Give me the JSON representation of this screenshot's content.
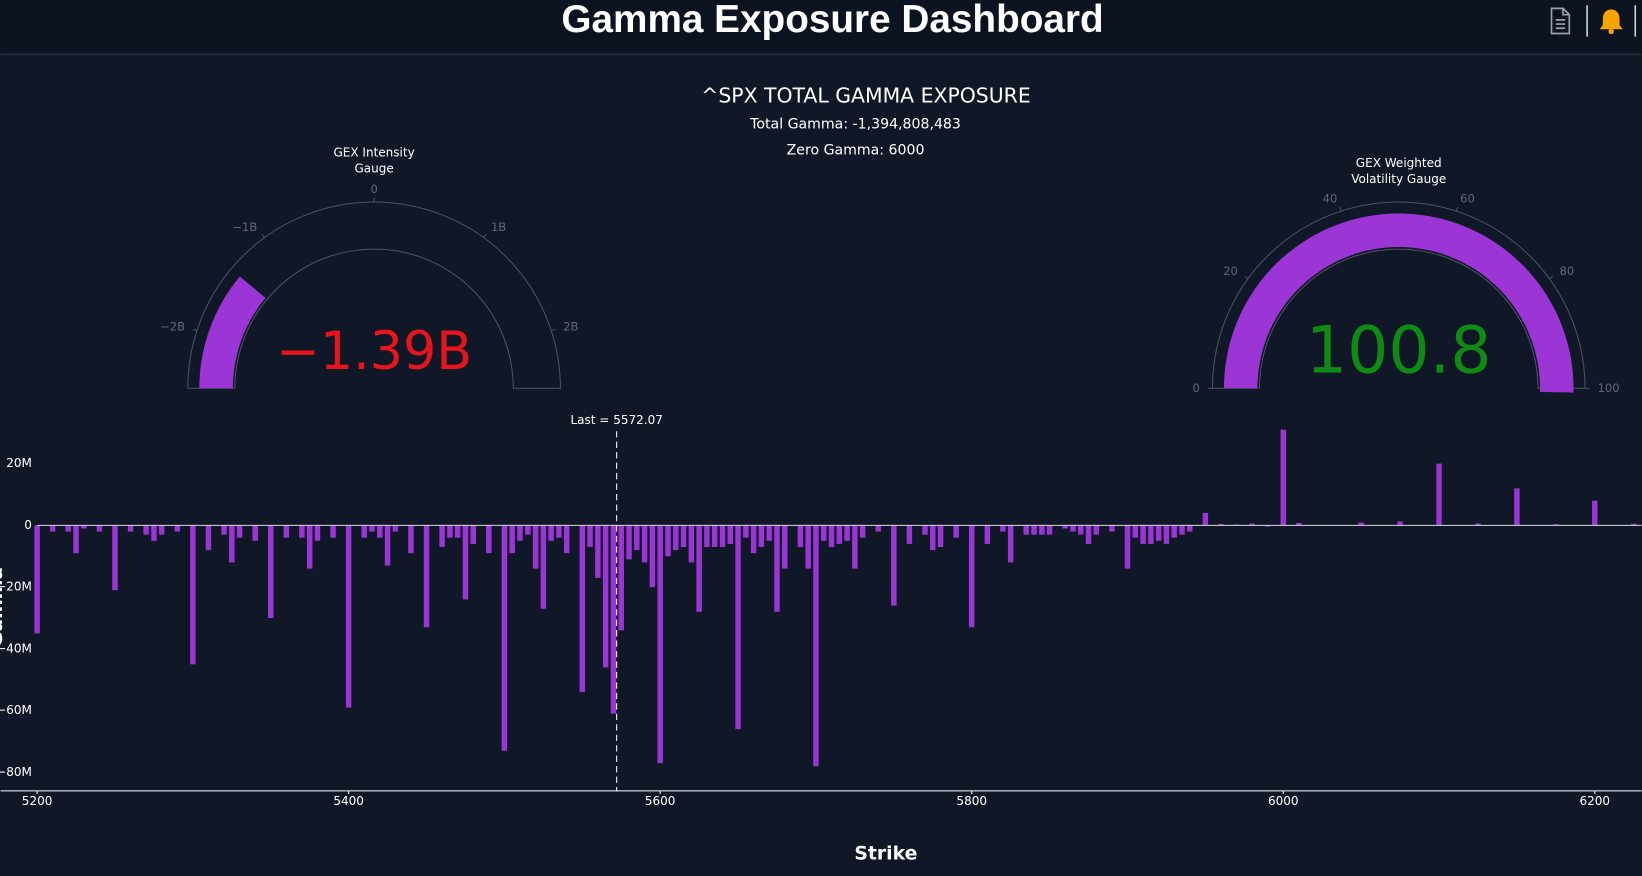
{
  "header": {
    "title": "Gamma Exposure Dashboard"
  },
  "chart_data": [
    {
      "type": "gauge",
      "title": [
        "GEX Intensity",
        "Gauge"
      ],
      "value": -1394808483,
      "value_label": "−1.39B",
      "value_color": "#e8141b",
      "color": "#9b35d6",
      "range": [
        -2500000000,
        2500000000
      ],
      "ticks": [
        {
          "value": -2000000000,
          "label": "−2B"
        },
        {
          "value": -1000000000,
          "label": "−1B"
        },
        0,
        {
          "value": 1000000000,
          "label": "1B"
        },
        {
          "value": 2000000000,
          "label": "2B"
        }
      ]
    },
    {
      "type": "gauge",
      "title": [
        "GEX Weighted",
        "Volatility Gauge"
      ],
      "value": 100.8,
      "value_color": "#0f8a12",
      "color": "#9b35d6",
      "range": [
        0,
        100
      ],
      "ticks": [
        0,
        20,
        40,
        60,
        80,
        100
      ]
    },
    {
      "type": "bar",
      "title": "^SPX TOTAL GAMMA EXPOSURE",
      "subtitles": [
        "Total Gamma: -1,394,808,483",
        "Zero Gamma: 6000"
      ],
      "x_label": "Strike",
      "y_label": "Gamma",
      "color": "#9b35d6",
      "annotation": {
        "value": 5572.07,
        "label": "Last = 5572.07"
      },
      "xlim": [
        5200,
        6230
      ],
      "xticks": [
        5200,
        5400,
        5600,
        5800,
        6000,
        6200
      ],
      "ylim": [
        -86000000,
        34500000
      ],
      "yticks": [
        {
          "value": -80000000,
          "label": "−80M"
        },
        {
          "value": -60000000,
          "label": "−60M"
        },
        {
          "value": -40000000,
          "label": "−40M"
        },
        {
          "value": -20000000,
          "label": "−20M"
        },
        0,
        {
          "value": 20000000,
          "label": "20M"
        }
      ],
      "x": [
        5200,
        5210,
        5220,
        5225,
        5230,
        5240,
        5250,
        5260,
        5270,
        5275,
        5280,
        5290,
        5300,
        5310,
        5320,
        5325,
        5330,
        5340,
        5350,
        5360,
        5370,
        5375,
        5380,
        5390,
        5400,
        5410,
        5415,
        5420,
        5425,
        5430,
        5440,
        5450,
        5460,
        5465,
        5470,
        5475,
        5480,
        5490,
        5500,
        5505,
        5510,
        5515,
        5520,
        5525,
        5530,
        5535,
        5540,
        5550,
        5555,
        5560,
        5565,
        5570,
        5575,
        5580,
        5585,
        5590,
        5595,
        5600,
        5605,
        5610,
        5615,
        5620,
        5625,
        5630,
        5635,
        5640,
        5645,
        5650,
        5655,
        5660,
        5665,
        5670,
        5675,
        5680,
        5690,
        5695,
        5700,
        5705,
        5710,
        5715,
        5720,
        5725,
        5730,
        5740,
        5750,
        5760,
        5770,
        5775,
        5780,
        5790,
        5800,
        5810,
        5820,
        5825,
        5835,
        5840,
        5845,
        5850,
        5860,
        5865,
        5870,
        5875,
        5880,
        5890,
        5900,
        5905,
        5910,
        5915,
        5920,
        5925,
        5930,
        5935,
        5940,
        5950,
        5960,
        5970,
        5980,
        5990,
        6000,
        6010,
        6050,
        6075,
        6100,
        6125,
        6150,
        6175,
        6200,
        6225
      ],
      "values": [
        -35000000,
        -2000000,
        -2000000,
        -9000000,
        -1000000,
        -2000000,
        -21000000,
        -2000000,
        -3000000,
        -5000000,
        -3000000,
        -2000000,
        -45000000,
        -8000000,
        -3000000,
        -12000000,
        -4000000,
        -5000000,
        -30000000,
        -4000000,
        -4000000,
        -14000000,
        -5000000,
        -4000000,
        -59000000,
        -4000000,
        -2000000,
        -4000000,
        -13000000,
        -2000000,
        -9000000,
        -33000000,
        -7000000,
        -4000000,
        -4000000,
        -24000000,
        -6000000,
        -9000000,
        -73000000,
        -9000000,
        -5000000,
        -3000000,
        -14000000,
        -27000000,
        -5000000,
        -4000000,
        -9000000,
        -54000000,
        -7000000,
        -17000000,
        -46000000,
        -61000000,
        -34000000,
        -11000000,
        -8000000,
        -12000000,
        -20000000,
        -77000000,
        -10000000,
        -8000000,
        -7000000,
        -12000000,
        -28000000,
        -7000000,
        -7000000,
        -7000000,
        -6000000,
        -66000000,
        -4000000,
        -9000000,
        -7000000,
        -5000000,
        -28000000,
        -14000000,
        -7000000,
        -14000000,
        -78000000,
        -5000000,
        -7000000,
        -6000000,
        -5000000,
        -14000000,
        -4000000,
        -2000000,
        -26000000,
        -6000000,
        -3000000,
        -8000000,
        -7000000,
        -4000000,
        -33000000,
        -6000000,
        -2000000,
        -12000000,
        -3000000,
        -3000000,
        -3000000,
        -3000000,
        -1000000,
        -2000000,
        -3000000,
        -6000000,
        -3000000,
        -2000000,
        -14000000,
        -4000000,
        -6000000,
        -6000000,
        -5000000,
        -6000000,
        -4000000,
        -3000000,
        -2000000,
        4000000,
        500000,
        300000,
        600000,
        -400000,
        31000000,
        800000,
        900000,
        1300000,
        20000000,
        600000,
        12000000,
        400000,
        8000000,
        500000
      ]
    }
  ]
}
